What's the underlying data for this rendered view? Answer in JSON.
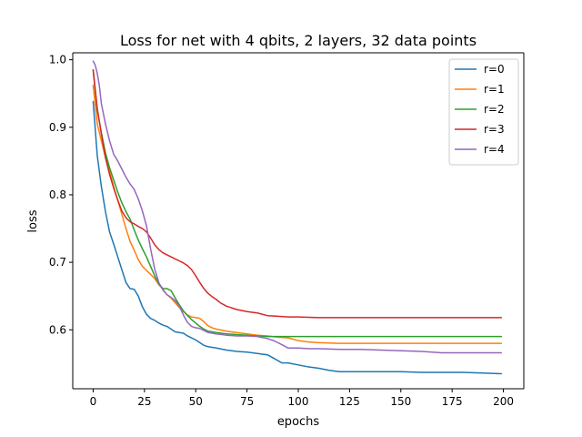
{
  "chart_data": {
    "type": "line",
    "title": "Loss for net with 4 qbits, 2 layers, 32 data points",
    "xlabel": "epochs",
    "ylabel": "loss",
    "xlim": [
      -9.95,
      209.95
    ],
    "ylim": [
      0.5127,
      1.0103
    ],
    "xticks": [
      0,
      25,
      50,
      75,
      100,
      125,
      150,
      175,
      200
    ],
    "yticks": [
      0.6,
      0.7,
      0.8,
      0.9,
      1.0
    ],
    "ytick_labels": [
      "0.6",
      "0.7",
      "0.8",
      "0.9",
      "1.0"
    ],
    "grid": false,
    "legend_position": "upper right",
    "series": [
      {
        "name": "r=0",
        "color": "#1f77b4",
        "x": [
          0,
          2,
          4,
          6,
          8,
          10,
          12,
          14,
          16,
          18,
          20,
          22,
          24,
          26,
          28,
          30,
          32,
          34,
          36,
          38,
          40,
          42,
          44,
          46,
          48,
          50,
          52,
          54,
          56,
          58,
          60,
          65,
          70,
          75,
          80,
          85,
          88,
          92,
          95,
          100,
          105,
          110,
          115,
          120,
          125,
          130,
          140,
          150,
          160,
          170,
          180,
          190,
          199
        ],
        "y": [
          0.938,
          0.858,
          0.812,
          0.775,
          0.745,
          0.727,
          0.708,
          0.689,
          0.67,
          0.661,
          0.66,
          0.65,
          0.634,
          0.623,
          0.617,
          0.614,
          0.61,
          0.607,
          0.605,
          0.601,
          0.597,
          0.596,
          0.595,
          0.591,
          0.588,
          0.585,
          0.581,
          0.577,
          0.575,
          0.574,
          0.573,
          0.57,
          0.568,
          0.567,
          0.565,
          0.563,
          0.558,
          0.551,
          0.551,
          0.548,
          0.545,
          0.543,
          0.54,
          0.538,
          0.538,
          0.538,
          0.538,
          0.538,
          0.537,
          0.537,
          0.537,
          0.536,
          0.535
        ]
      },
      {
        "name": "r=1",
        "color": "#ff7f0e",
        "x": [
          0,
          2,
          4,
          6,
          8,
          10,
          12,
          14,
          16,
          18,
          20,
          22,
          24,
          26,
          28,
          30,
          32,
          34,
          36,
          38,
          40,
          42,
          44,
          46,
          48,
          50,
          52,
          54,
          56,
          58,
          60,
          65,
          70,
          75,
          80,
          85,
          90,
          95,
          100,
          105,
          110,
          120,
          130,
          140,
          150,
          160,
          170,
          180,
          190,
          199
        ],
        "y": [
          0.962,
          0.905,
          0.88,
          0.855,
          0.835,
          0.812,
          0.792,
          0.771,
          0.75,
          0.731,
          0.718,
          0.704,
          0.694,
          0.688,
          0.682,
          0.676,
          0.667,
          0.66,
          0.652,
          0.647,
          0.64,
          0.633,
          0.627,
          0.622,
          0.619,
          0.618,
          0.617,
          0.612,
          0.606,
          0.603,
          0.601,
          0.598,
          0.596,
          0.594,
          0.592,
          0.591,
          0.589,
          0.588,
          0.584,
          0.582,
          0.581,
          0.58,
          0.58,
          0.58,
          0.58,
          0.58,
          0.58,
          0.58,
          0.58,
          0.58
        ]
      },
      {
        "name": "r=2",
        "color": "#2ca02c",
        "x": [
          0,
          2,
          4,
          6,
          8,
          10,
          12,
          14,
          16,
          18,
          20,
          22,
          24,
          26,
          28,
          30,
          32,
          34,
          36,
          38,
          40,
          42,
          44,
          46,
          48,
          50,
          52,
          54,
          56,
          58,
          60,
          65,
          70,
          75,
          80,
          85,
          90,
          100,
          110,
          120,
          130,
          140,
          150,
          160,
          170,
          180,
          190,
          199
        ],
        "y": [
          0.985,
          0.925,
          0.892,
          0.862,
          0.84,
          0.822,
          0.804,
          0.788,
          0.775,
          0.764,
          0.748,
          0.733,
          0.72,
          0.708,
          0.694,
          0.68,
          0.668,
          0.661,
          0.661,
          0.658,
          0.647,
          0.637,
          0.628,
          0.621,
          0.615,
          0.61,
          0.605,
          0.601,
          0.598,
          0.597,
          0.596,
          0.594,
          0.593,
          0.592,
          0.591,
          0.59,
          0.59,
          0.59,
          0.59,
          0.59,
          0.59,
          0.59,
          0.59,
          0.59,
          0.59,
          0.59,
          0.59,
          0.59
        ]
      },
      {
        "name": "r=3",
        "color": "#d62728",
        "x": [
          0,
          2,
          4,
          6,
          8,
          10,
          12,
          14,
          16,
          18,
          20,
          22,
          24,
          26,
          28,
          30,
          32,
          34,
          36,
          38,
          40,
          42,
          44,
          46,
          48,
          50,
          52,
          54,
          56,
          58,
          60,
          62,
          65,
          70,
          75,
          80,
          85,
          90,
          95,
          100,
          110,
          120,
          130,
          140,
          150,
          160,
          170,
          180,
          190,
          199
        ],
        "y": [
          0.985,
          0.928,
          0.89,
          0.855,
          0.83,
          0.81,
          0.792,
          0.776,
          0.766,
          0.76,
          0.757,
          0.753,
          0.75,
          0.745,
          0.736,
          0.726,
          0.719,
          0.714,
          0.711,
          0.708,
          0.705,
          0.702,
          0.699,
          0.695,
          0.689,
          0.68,
          0.67,
          0.661,
          0.654,
          0.649,
          0.645,
          0.64,
          0.635,
          0.63,
          0.627,
          0.625,
          0.621,
          0.62,
          0.619,
          0.619,
          0.618,
          0.618,
          0.618,
          0.618,
          0.618,
          0.618,
          0.618,
          0.618,
          0.618,
          0.618
        ]
      },
      {
        "name": "r=4",
        "color": "#9467bd",
        "x": [
          0,
          1,
          2,
          3,
          4,
          6,
          8,
          10,
          12,
          14,
          16,
          18,
          20,
          22,
          24,
          26,
          28,
          30,
          32,
          34,
          36,
          38,
          40,
          42,
          44,
          46,
          48,
          50,
          52,
          54,
          56,
          58,
          60,
          65,
          70,
          75,
          80,
          85,
          88,
          92,
          95,
          100,
          105,
          110,
          120,
          130,
          140,
          150,
          160,
          170,
          180,
          190,
          199
        ],
        "y": [
          0.998,
          0.992,
          0.98,
          0.962,
          0.935,
          0.905,
          0.88,
          0.86,
          0.85,
          0.838,
          0.826,
          0.816,
          0.808,
          0.794,
          0.776,
          0.754,
          0.72,
          0.69,
          0.67,
          0.659,
          0.652,
          0.648,
          0.643,
          0.635,
          0.622,
          0.611,
          0.605,
          0.603,
          0.602,
          0.599,
          0.596,
          0.595,
          0.594,
          0.592,
          0.591,
          0.591,
          0.59,
          0.587,
          0.584,
          0.578,
          0.573,
          0.573,
          0.572,
          0.572,
          0.571,
          0.571,
          0.57,
          0.569,
          0.568,
          0.566,
          0.566,
          0.566,
          0.566
        ]
      }
    ]
  }
}
